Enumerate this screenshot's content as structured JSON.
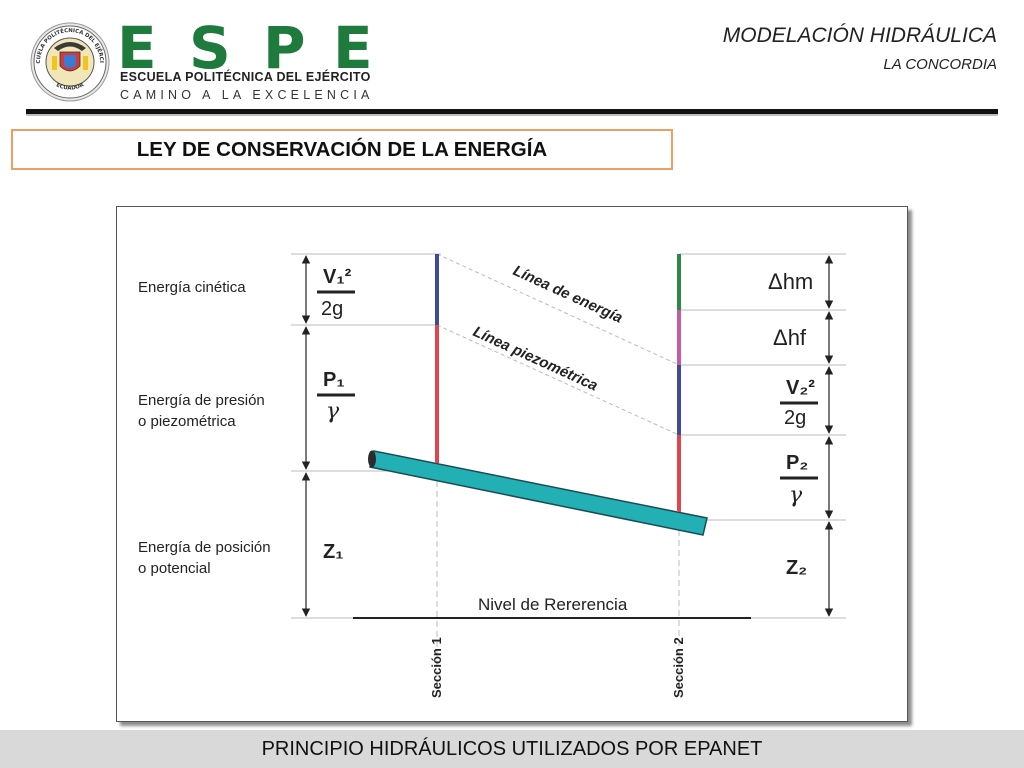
{
  "header": {
    "logo": {
      "seal_text_top": "ESCUELA POLITÉCNICA DEL EJÉRCITO",
      "seal_text_bottom": "ECUADOR",
      "brand_letters": [
        "E",
        "S",
        "P",
        "E"
      ],
      "school_name": "ESCUELA POLITÉCNICA DEL EJÉRCITO",
      "motto": "CAMINO A LA EXCELENCIA"
    },
    "course_title": "MODELACIÓN HIDRÁULICA",
    "course_location": "LA CONCORDIA"
  },
  "section_title": "LEY DE CONSERVACIÓN DE LA ENERGÍA",
  "diagram": {
    "labels": {
      "kinetic": [
        "Energía cinética"
      ],
      "pressure": [
        "Energía de presión",
        "o piezométrica"
      ],
      "position": [
        "Energía de posición",
        "o potencial"
      ],
      "energy_line": "Línea de energía",
      "piezometric_line": "Línea piezométrica",
      "reference_level": "Nivel de Rererencia",
      "section_1": "Sección 1",
      "section_2": "Sección 2"
    },
    "terms_left": {
      "v1_num": "V₁²",
      "v1_den": "2g",
      "p1_num": "P₁",
      "p1_den": "γ",
      "z1": "Z₁"
    },
    "terms_right": {
      "hm": "Δhm",
      "hf": "Δhf",
      "v2_num": "V₂²",
      "v2_den": "2g",
      "p2_num": "P₂",
      "p2_den": "γ",
      "z2": "Z₂"
    },
    "colors": {
      "kinetic": "#3f4b95",
      "pressure": "#e0454f",
      "minor_loss": "#2a8a45",
      "friction_loss": "#c45aa9",
      "pipe_fill": "#22b0b5",
      "pipe_stroke": "#1a4c55",
      "guides": "#bbbbbb"
    }
  },
  "footer": {
    "text": "PRINCIPIO HIDRÁULICOS UTILIZADOS POR EPANET"
  }
}
